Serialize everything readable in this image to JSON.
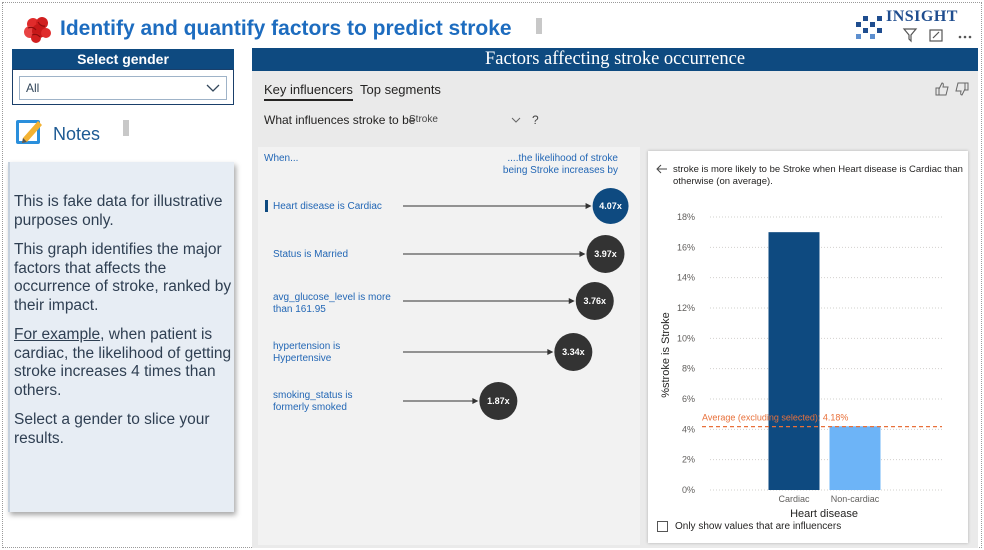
{
  "header": {
    "title": "Identify and quantify factors to predict stroke",
    "logo_text": "INSIGHT"
  },
  "slicer": {
    "title": "Select gender",
    "value": "All"
  },
  "notes": {
    "label": "Notes",
    "p1": "This is fake data for illustrative purposes only.",
    "p2": "This graph identifies the major factors that affects the occurrence of stroke, ranked by their impact.",
    "p3_link": "For example",
    "p3_rest": ", when patient is cardiac, the likelihood of getting stroke increases 4 times than others.",
    "p4": "Select a gender to slice your results."
  },
  "visual": {
    "title": "Factors affecting stroke occurrence",
    "tabs": [
      "Key influencers",
      "Top segments"
    ],
    "question": "What influences stroke to be",
    "question_value": "Stroke",
    "help": "?",
    "col_when": "When...",
    "col_likely": "....the likelihood of stroke being Stroke increases by",
    "influencers": [
      {
        "label": "Heart disease is Cardiac",
        "value": 4.07,
        "display": "4.07x",
        "selected": true
      },
      {
        "label": "Status is Married",
        "value": 3.97,
        "display": "3.97x",
        "selected": false
      },
      {
        "label": "avg_glucose_level is more than 161.95",
        "value": 3.76,
        "display": "3.76x",
        "selected": false
      },
      {
        "label": "hypertension is Hypertensive",
        "value": 3.34,
        "display": "3.34x",
        "selected": false
      },
      {
        "label": "smoking_status is formerly smoked",
        "value": 1.87,
        "display": "1.87x",
        "selected": false
      }
    ]
  },
  "detail": {
    "title": "stroke is more likely to be Stroke when Heart disease is Cardiac than otherwise (on average).",
    "checkbox_label": "Only show values that are influencers"
  },
  "chart_data": {
    "type": "bar",
    "categories": [
      "Cardiac",
      "Non-cardiac"
    ],
    "values": [
      17.0,
      4.2
    ],
    "xlabel": "Heart disease",
    "ylabel": "%stroke is Stroke",
    "ylim": [
      0,
      18
    ],
    "yticks": [
      0,
      2,
      4,
      6,
      8,
      10,
      12,
      14,
      16,
      18
    ],
    "ytick_labels": [
      "0%",
      "2%",
      "4%",
      "6%",
      "8%",
      "10%",
      "12%",
      "14%",
      "16%",
      "18%"
    ],
    "reference_line": {
      "value": 4.18,
      "label": "Average (excluding selected): 4.18%"
    },
    "colors": [
      "#0e4a80",
      "#6db4f7"
    ]
  },
  "colors": {
    "accent": "#0e4a80",
    "title": "#1d6cbf",
    "link": "#2367b5",
    "reference": "#e8703a"
  }
}
